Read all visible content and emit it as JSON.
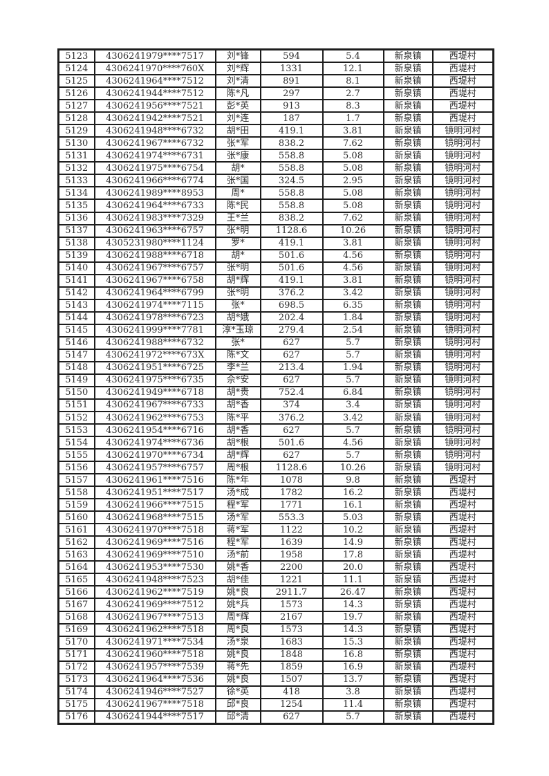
{
  "page": {
    "background_color": "#ffffff",
    "border_color": "#1d1d1d",
    "text_color": "#2e2e2e"
  },
  "table": {
    "rows": [
      [
        "5123",
        "4306241979****7517",
        "刘*锋",
        "594",
        "5.4",
        "新泉镇",
        "西堤村"
      ],
      [
        "5124",
        "4306241970****760X",
        "刘*辉",
        "1331",
        "12.1",
        "新泉镇",
        "西堤村"
      ],
      [
        "5125",
        "4306241964****7512",
        "刘*清",
        "891",
        "8.1",
        "新泉镇",
        "西堤村"
      ],
      [
        "5126",
        "4306241944****7512",
        "陈*凡",
        "297",
        "2.7",
        "新泉镇",
        "西堤村"
      ],
      [
        "5127",
        "4306241956****7521",
        "彭*英",
        "913",
        "8.3",
        "新泉镇",
        "西堤村"
      ],
      [
        "5128",
        "4306241942****7521",
        "刘*连",
        "187",
        "1.7",
        "新泉镇",
        "西堤村"
      ],
      [
        "5129",
        "4306241948****6732",
        "胡*田",
        "419.1",
        "3.81",
        "新泉镇",
        "镜明河村"
      ],
      [
        "5130",
        "4306241967****6732",
        "张*军",
        "838.2",
        "7.62",
        "新泉镇",
        "镜明河村"
      ],
      [
        "5131",
        "4306241974****6731",
        "张*康",
        "558.8",
        "5.08",
        "新泉镇",
        "镜明河村"
      ],
      [
        "5132",
        "4306241975****6754",
        "胡*",
        "558.8",
        "5.08",
        "新泉镇",
        "镜明河村"
      ],
      [
        "5133",
        "4306241966****6774",
        "张*国",
        "324.5",
        "2.95",
        "新泉镇",
        "镜明河村"
      ],
      [
        "5134",
        "4306241989****8953",
        "周*",
        "558.8",
        "5.08",
        "新泉镇",
        "镜明河村"
      ],
      [
        "5135",
        "4306241964****6733",
        "陈*民",
        "558.8",
        "5.08",
        "新泉镇",
        "镜明河村"
      ],
      [
        "5136",
        "4306241983****7329",
        "王*兰",
        "838.2",
        "7.62",
        "新泉镇",
        "镜明河村"
      ],
      [
        "5137",
        "4306241963****6757",
        "张*明",
        "1128.6",
        "10.26",
        "新泉镇",
        "镜明河村"
      ],
      [
        "5138",
        "4305231980****1124",
        "罗*",
        "419.1",
        "3.81",
        "新泉镇",
        "镜明河村"
      ],
      [
        "5139",
        "4306241988****6718",
        "胡*",
        "501.6",
        "4.56",
        "新泉镇",
        "镜明河村"
      ],
      [
        "5140",
        "4306241967****6757",
        "张*明",
        "501.6",
        "4.56",
        "新泉镇",
        "镜明河村"
      ],
      [
        "5141",
        "4306241967****6758",
        "胡*辉",
        "419.1",
        "3.81",
        "新泉镇",
        "镜明河村"
      ],
      [
        "5142",
        "4306241964****6799",
        "张*明",
        "376.2",
        "3.42",
        "新泉镇",
        "镜明河村"
      ],
      [
        "5143",
        "4306241974****7115",
        "张*",
        "698.5",
        "6.35",
        "新泉镇",
        "镜明河村"
      ],
      [
        "5144",
        "4306241978****6723",
        "胡*娥",
        "202.4",
        "1.84",
        "新泉镇",
        "镜明河村"
      ],
      [
        "5145",
        "4306241999****7781",
        "淳*玉琼",
        "279.4",
        "2.54",
        "新泉镇",
        "镜明河村"
      ],
      [
        "5146",
        "4306241988****6732",
        "张*",
        "627",
        "5.7",
        "新泉镇",
        "镜明河村"
      ],
      [
        "5147",
        "4306241972****673X",
        "陈*文",
        "627",
        "5.7",
        "新泉镇",
        "镜明河村"
      ],
      [
        "5148",
        "4306241951****6725",
        "李*兰",
        "213.4",
        "1.94",
        "新泉镇",
        "镜明河村"
      ],
      [
        "5149",
        "4306241975****6735",
        "佘*安",
        "627",
        "5.7",
        "新泉镇",
        "镜明河村"
      ],
      [
        "5150",
        "4306241949****6718",
        "胡*贵",
        "752.4",
        "6.84",
        "新泉镇",
        "镜明河村"
      ],
      [
        "5151",
        "4306241967****6733",
        "胡*香",
        "374",
        "3.4",
        "新泉镇",
        "镜明河村"
      ],
      [
        "5152",
        "4306241962****6753",
        "陈*平",
        "376.2",
        "3.42",
        "新泉镇",
        "镜明河村"
      ],
      [
        "5153",
        "4306241954****6716",
        "胡*香",
        "627",
        "5.7",
        "新泉镇",
        "镜明河村"
      ],
      [
        "5154",
        "4306241974****6736",
        "胡*根",
        "501.6",
        "4.56",
        "新泉镇",
        "镜明河村"
      ],
      [
        "5155",
        "4306241970****6734",
        "胡*辉",
        "627",
        "5.7",
        "新泉镇",
        "镜明河村"
      ],
      [
        "5156",
        "4306241957****6757",
        "周*根",
        "1128.6",
        "10.26",
        "新泉镇",
        "镜明河村"
      ],
      [
        "5157",
        "4306241961****7516",
        "陈*年",
        "1078",
        "9.8",
        "新泉镇",
        "西堤村"
      ],
      [
        "5158",
        "4306241951****7517",
        "汤*成",
        "1782",
        "16.2",
        "新泉镇",
        "西堤村"
      ],
      [
        "5159",
        "4306241966****7515",
        "程*军",
        "1771",
        "16.1",
        "新泉镇",
        "西堤村"
      ],
      [
        "5160",
        "4306241968****7515",
        "汤*军",
        "553.3",
        "5.03",
        "新泉镇",
        "西堤村"
      ],
      [
        "5161",
        "4306241970****7518",
        "蒋*军",
        "1122",
        "10.2",
        "新泉镇",
        "西堤村"
      ],
      [
        "5162",
        "4306241969****7516",
        "程*军",
        "1639",
        "14.9",
        "新泉镇",
        "西堤村"
      ],
      [
        "5163",
        "4306241969****7510",
        "汤*前",
        "1958",
        "17.8",
        "新泉镇",
        "西堤村"
      ],
      [
        "5164",
        "4306241953****7530",
        "姚*香",
        "2200",
        "20.0",
        "新泉镇",
        "西堤村"
      ],
      [
        "5165",
        "4306241948****7523",
        "胡*佳",
        "1221",
        "11.1",
        "新泉镇",
        "西堤村"
      ],
      [
        "5166",
        "4306241962****7519",
        "姚*良",
        "2911.7",
        "26.47",
        "新泉镇",
        "西堤村"
      ],
      [
        "5167",
        "4306241969****7512",
        "姚*兵",
        "1573",
        "14.3",
        "新泉镇",
        "西堤村"
      ],
      [
        "5168",
        "4306241967****7513",
        "周*辉",
        "2167",
        "19.7",
        "新泉镇",
        "西堤村"
      ],
      [
        "5169",
        "4306241962****7518",
        "周*良",
        "1573",
        "14.3",
        "新泉镇",
        "西堤村"
      ],
      [
        "5170",
        "4306241971****7534",
        "汤*泉",
        "1683",
        "15.3",
        "新泉镇",
        "西堤村"
      ],
      [
        "5171",
        "4306241960****7518",
        "姚*良",
        "1848",
        "16.8",
        "新泉镇",
        "西堤村"
      ],
      [
        "5172",
        "4306241957****7539",
        "蒋*先",
        "1859",
        "16.9",
        "新泉镇",
        "西堤村"
      ],
      [
        "5173",
        "4306241964****7536",
        "姚*良",
        "1507",
        "13.7",
        "新泉镇",
        "西堤村"
      ],
      [
        "5174",
        "4306241946****7527",
        "徐*英",
        "418",
        "3.8",
        "新泉镇",
        "西堤村"
      ],
      [
        "5175",
        "4306241967****7518",
        "邱*良",
        "1254",
        "11.4",
        "新泉镇",
        "西堤村"
      ],
      [
        "5176",
        "4306241944****7517",
        "邱*清",
        "627",
        "5.7",
        "新泉镇",
        "西堤村"
      ]
    ]
  }
}
